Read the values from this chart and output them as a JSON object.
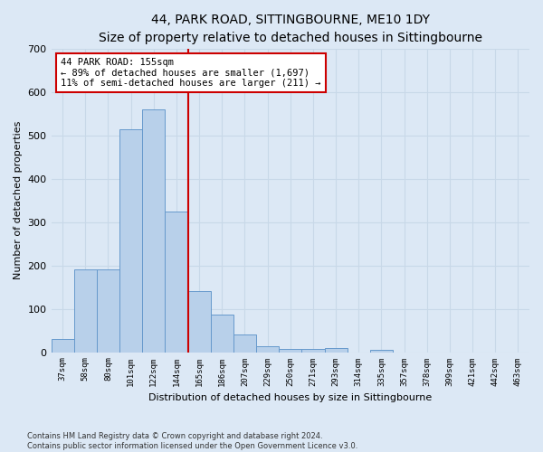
{
  "title": "44, PARK ROAD, SITTINGBOURNE, ME10 1DY",
  "subtitle": "Size of property relative to detached houses in Sittingbourne",
  "xlabel": "Distribution of detached houses by size in Sittingbourne",
  "ylabel": "Number of detached properties",
  "footer_line1": "Contains HM Land Registry data © Crown copyright and database right 2024.",
  "footer_line2": "Contains public sector information licensed under the Open Government Licence v3.0.",
  "categories": [
    "37sqm",
    "58sqm",
    "80sqm",
    "101sqm",
    "122sqm",
    "144sqm",
    "165sqm",
    "186sqm",
    "207sqm",
    "229sqm",
    "250sqm",
    "271sqm",
    "293sqm",
    "314sqm",
    "335sqm",
    "357sqm",
    "378sqm",
    "399sqm",
    "421sqm",
    "442sqm",
    "463sqm"
  ],
  "values": [
    30,
    190,
    190,
    515,
    560,
    325,
    140,
    87,
    40,
    13,
    8,
    8,
    10,
    0,
    6,
    0,
    0,
    0,
    0,
    0,
    0
  ],
  "bar_color": "#b8d0ea",
  "bar_edge_color": "#6699cc",
  "vline_position": 5.5,
  "vline_color": "#cc0000",
  "annotation_line1": "44 PARK ROAD: 155sqm",
  "annotation_line2": "← 89% of detached houses are smaller (1,697)",
  "annotation_line3": "11% of semi-detached houses are larger (211) →",
  "annotation_box_color": "#ffffff",
  "annotation_box_edge": "#cc0000",
  "ylim": [
    0,
    700
  ],
  "yticks": [
    0,
    100,
    200,
    300,
    400,
    500,
    600,
    700
  ],
  "bg_color": "#dce8f5",
  "plot_bg_color": "#dce8f5",
  "grid_color": "#c8d8e8",
  "title_fontsize": 10,
  "subtitle_fontsize": 9,
  "ylabel_fontsize": 8,
  "xlabel_fontsize": 8
}
